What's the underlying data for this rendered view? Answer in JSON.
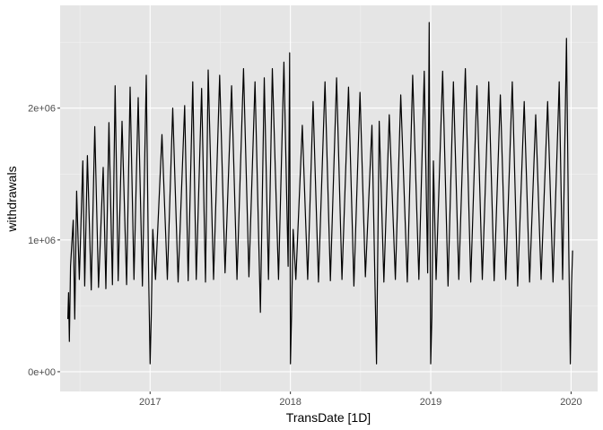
{
  "chart_data": {
    "type": "line",
    "title": "",
    "xlabel": "TransDate [1D]",
    "ylabel": "withdrawals",
    "x_range": [
      "2016-05-12",
      "2020-03-10"
    ],
    "ylim": [
      -150000,
      2780000
    ],
    "x_ticks": [
      {
        "date": "2017-01-01",
        "label": "2017"
      },
      {
        "date": "2018-01-01",
        "label": "2018"
      },
      {
        "date": "2019-01-01",
        "label": "2019"
      },
      {
        "date": "2020-01-01",
        "label": "2020"
      }
    ],
    "y_ticks": [
      {
        "value": 0,
        "label": "0e+00"
      },
      {
        "value": 1000000,
        "label": "1e+06"
      },
      {
        "value": 2000000,
        "label": "2e+06"
      }
    ],
    "grid": true,
    "background": "#e5e5e5",
    "line_color": "#000000",
    "series": [
      {
        "name": "",
        "points": [
          [
            "2016-06-01",
            400000
          ],
          [
            "2016-06-03",
            600000
          ],
          [
            "2016-06-05",
            230000
          ],
          [
            "2016-06-08",
            800000
          ],
          [
            "2016-06-12",
            1000000
          ],
          [
            "2016-06-15",
            1150000
          ],
          [
            "2016-06-19",
            400000
          ],
          [
            "2016-06-24",
            1370000
          ],
          [
            "2016-07-01",
            700000
          ],
          [
            "2016-07-10",
            1600000
          ],
          [
            "2016-07-15",
            650000
          ],
          [
            "2016-07-22",
            1640000
          ],
          [
            "2016-08-01",
            620000
          ],
          [
            "2016-08-10",
            1860000
          ],
          [
            "2016-08-20",
            640000
          ],
          [
            "2016-09-01",
            1550000
          ],
          [
            "2016-09-08",
            630000
          ],
          [
            "2016-09-16",
            1890000
          ],
          [
            "2016-09-25",
            660000
          ],
          [
            "2016-10-02",
            2170000
          ],
          [
            "2016-10-10",
            690000
          ],
          [
            "2016-10-20",
            1900000
          ],
          [
            "2016-11-01",
            660000
          ],
          [
            "2016-11-10",
            2160000
          ],
          [
            "2016-11-20",
            700000
          ],
          [
            "2016-12-01",
            2080000
          ],
          [
            "2016-12-12",
            650000
          ],
          [
            "2016-12-22",
            2250000
          ],
          [
            "2016-12-28",
            800000
          ],
          [
            "2017-01-01",
            60000
          ],
          [
            "2017-01-04",
            400000
          ],
          [
            "2017-01-08",
            1080000
          ],
          [
            "2017-01-15",
            700000
          ],
          [
            "2017-02-01",
            1800000
          ],
          [
            "2017-02-15",
            700000
          ],
          [
            "2017-03-01",
            2000000
          ],
          [
            "2017-03-15",
            680000
          ],
          [
            "2017-04-01",
            2020000
          ],
          [
            "2017-04-10",
            690000
          ],
          [
            "2017-04-22",
            2200000
          ],
          [
            "2017-05-01",
            700000
          ],
          [
            "2017-05-15",
            2150000
          ],
          [
            "2017-05-25",
            680000
          ],
          [
            "2017-06-01",
            2290000
          ],
          [
            "2017-06-15",
            700000
          ],
          [
            "2017-07-01",
            2250000
          ],
          [
            "2017-07-15",
            750000
          ],
          [
            "2017-08-01",
            2170000
          ],
          [
            "2017-08-15",
            700000
          ],
          [
            "2017-09-01",
            2300000
          ],
          [
            "2017-09-15",
            720000
          ],
          [
            "2017-10-01",
            2200000
          ],
          [
            "2017-10-15",
            450000
          ],
          [
            "2017-10-25",
            2230000
          ],
          [
            "2017-11-05",
            700000
          ],
          [
            "2017-11-15",
            2300000
          ],
          [
            "2017-12-01",
            700000
          ],
          [
            "2017-12-15",
            2350000
          ],
          [
            "2017-12-26",
            800000
          ],
          [
            "2017-12-30",
            2420000
          ],
          [
            "2018-01-01",
            60000
          ],
          [
            "2018-01-04",
            420000
          ],
          [
            "2018-01-08",
            1080000
          ],
          [
            "2018-01-15",
            700000
          ],
          [
            "2018-02-01",
            1870000
          ],
          [
            "2018-02-15",
            700000
          ],
          [
            "2018-03-01",
            2050000
          ],
          [
            "2018-03-15",
            680000
          ],
          [
            "2018-04-01",
            2200000
          ],
          [
            "2018-04-15",
            690000
          ],
          [
            "2018-05-01",
            2230000
          ],
          [
            "2018-05-15",
            700000
          ],
          [
            "2018-06-01",
            2160000
          ],
          [
            "2018-06-15",
            650000
          ],
          [
            "2018-07-01",
            2120000
          ],
          [
            "2018-07-15",
            720000
          ],
          [
            "2018-08-01",
            1870000
          ],
          [
            "2018-08-13",
            60000
          ],
          [
            "2018-08-20",
            1900000
          ],
          [
            "2018-09-01",
            680000
          ],
          [
            "2018-09-15",
            1950000
          ],
          [
            "2018-10-01",
            700000
          ],
          [
            "2018-10-15",
            2100000
          ],
          [
            "2018-11-01",
            680000
          ],
          [
            "2018-11-15",
            2250000
          ],
          [
            "2018-12-01",
            700000
          ],
          [
            "2018-12-15",
            2280000
          ],
          [
            "2018-12-24",
            750000
          ],
          [
            "2018-12-28",
            2650000
          ],
          [
            "2019-01-01",
            60000
          ],
          [
            "2019-01-04",
            420000
          ],
          [
            "2019-01-08",
            1600000
          ],
          [
            "2019-01-15",
            700000
          ],
          [
            "2019-02-01",
            2280000
          ],
          [
            "2019-02-15",
            650000
          ],
          [
            "2019-03-01",
            2200000
          ],
          [
            "2019-03-15",
            700000
          ],
          [
            "2019-04-01",
            2300000
          ],
          [
            "2019-04-15",
            680000
          ],
          [
            "2019-05-01",
            2170000
          ],
          [
            "2019-05-15",
            700000
          ],
          [
            "2019-06-01",
            2200000
          ],
          [
            "2019-06-15",
            690000
          ],
          [
            "2019-07-01",
            2100000
          ],
          [
            "2019-07-15",
            700000
          ],
          [
            "2019-08-01",
            2200000
          ],
          [
            "2019-08-15",
            650000
          ],
          [
            "2019-09-01",
            2050000
          ],
          [
            "2019-09-15",
            680000
          ],
          [
            "2019-10-01",
            1950000
          ],
          [
            "2019-10-15",
            700000
          ],
          [
            "2019-11-01",
            2050000
          ],
          [
            "2019-11-15",
            680000
          ],
          [
            "2019-12-01",
            2200000
          ],
          [
            "2019-12-10",
            700000
          ],
          [
            "2019-12-20",
            2530000
          ],
          [
            "2019-12-26",
            900000
          ],
          [
            "2019-12-30",
            60000
          ],
          [
            "2020-01-02",
            650000
          ],
          [
            "2020-01-05",
            920000
          ]
        ]
      }
    ]
  }
}
